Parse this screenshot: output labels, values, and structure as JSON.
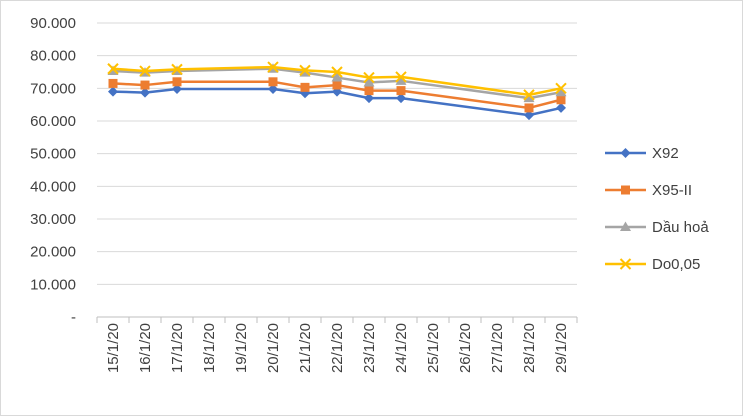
{
  "chart_data": {
    "type": "line",
    "categories": [
      "15/1/20",
      "16/1/20",
      "17/1/20",
      "18/1/20",
      "19/1/20",
      "20/1/20",
      "21/1/20",
      "22/1/20",
      "23/1/20",
      "24/1/20",
      "25/1/20",
      "26/1/20",
      "27/1/20",
      "28/1/20",
      "29/1/20"
    ],
    "y_ticks": [
      "-",
      "10.000",
      "20.000",
      "30.000",
      "40.000",
      "50.000",
      "60.000",
      "70.000",
      "80.000",
      "90.000"
    ],
    "ylim": [
      0,
      90000
    ],
    "y_step": 10000,
    "grid": true,
    "legend_position": "right",
    "series": [
      {
        "name": "X92",
        "color": "#4472c4",
        "marker": "diamond",
        "values": [
          69000,
          68700,
          69800,
          null,
          null,
          69800,
          68500,
          69000,
          67000,
          67000,
          null,
          null,
          null,
          61800,
          64000
        ]
      },
      {
        "name": "X95-II",
        "color": "#ed7d31",
        "marker": "square",
        "values": [
          71500,
          71000,
          72000,
          null,
          null,
          72000,
          70300,
          71000,
          69300,
          69300,
          null,
          null,
          null,
          64000,
          66500
        ]
      },
      {
        "name": "Dầu hoả",
        "color": "#a5a5a5",
        "marker": "triangle",
        "values": [
          75300,
          74800,
          75300,
          null,
          null,
          76000,
          74800,
          73300,
          71800,
          72300,
          null,
          null,
          null,
          67000,
          68800
        ]
      },
      {
        "name": "Do0,05",
        "color": "#ffc000",
        "marker": "x",
        "values": [
          76000,
          75300,
          75800,
          null,
          null,
          76500,
          75500,
          75000,
          73300,
          73500,
          null,
          null,
          null,
          68000,
          70000
        ]
      }
    ]
  }
}
